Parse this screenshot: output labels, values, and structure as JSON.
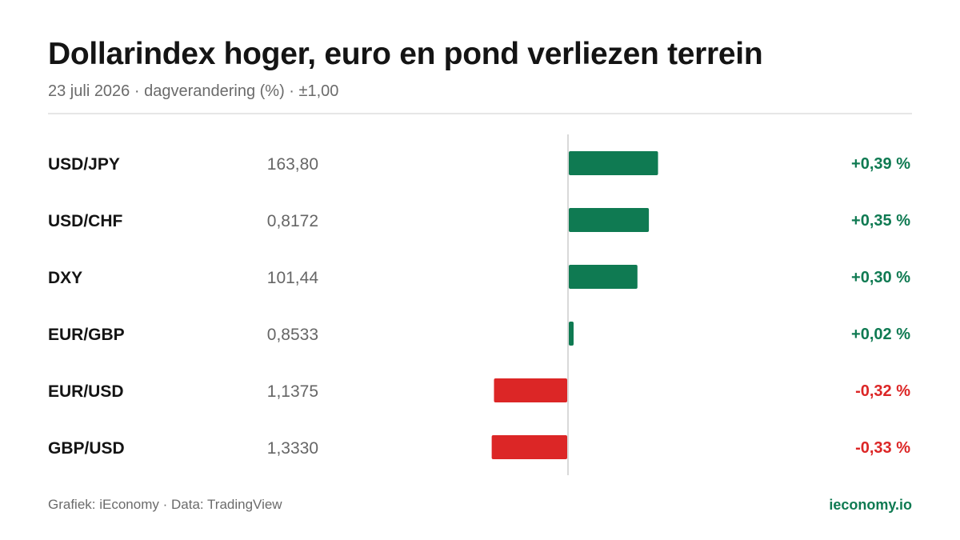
{
  "header": {
    "title": "Dollarindex hoger, euro en pond verliezen terrein",
    "subtitle": "23 juli 2026 · dagverandering (%) · ±1,00"
  },
  "footer": {
    "source": "Grafiek: iEconomy · Data: TradingView",
    "brand": "ieconomy.io"
  },
  "colors": {
    "positive": "#0f7a52",
    "negative": "#dc2626",
    "axis": "#d9d9d9"
  },
  "chart_data": {
    "type": "bar",
    "orientation": "horizontal",
    "scale": [
      -1.0,
      1.0
    ],
    "rows": [
      {
        "pair": "USD/JPY",
        "price": "163,80",
        "change": 0.39,
        "change_label": "+0,39 %"
      },
      {
        "pair": "USD/CHF",
        "price": "0,8172",
        "change": 0.35,
        "change_label": "+0,35 %"
      },
      {
        "pair": "DXY",
        "price": "101,44",
        "change": 0.3,
        "change_label": "+0,30 %"
      },
      {
        "pair": "EUR/GBP",
        "price": "0,8533",
        "change": 0.02,
        "change_label": "+0,02 %"
      },
      {
        "pair": "EUR/USD",
        "price": "1,1375",
        "change": -0.32,
        "change_label": "-0,32 %"
      },
      {
        "pair": "GBP/USD",
        "price": "1,3330",
        "change": -0.33,
        "change_label": "-0,33 %"
      }
    ]
  }
}
